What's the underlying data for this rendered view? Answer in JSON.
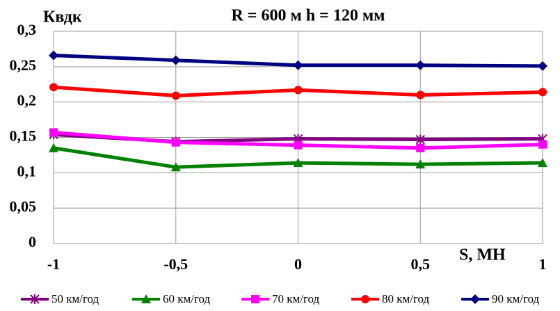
{
  "chart_data": {
    "type": "line",
    "title": "R = 600 м  h = 120 мм",
    "y_label": "Квдк",
    "x_label": "S, МН",
    "x": [
      -1,
      -0.5,
      0,
      0.5,
      1
    ],
    "xlim": [
      -1,
      1
    ],
    "xticks": [
      -1,
      {
        "value": -0.5,
        "label": "-0,5"
      },
      0,
      {
        "value": 0.5,
        "label": "0,5"
      },
      1
    ],
    "ylim": [
      0,
      0.3
    ],
    "yticks": [
      0,
      {
        "value": 0.05,
        "label": "0,05"
      },
      {
        "value": 0.1,
        "label": "0,1"
      },
      {
        "value": 0.15,
        "label": "0,15"
      },
      {
        "value": 0.2,
        "label": "0,2"
      },
      {
        "value": 0.25,
        "label": "0,25"
      },
      {
        "value": 0.3,
        "label": "0,3"
      }
    ],
    "grid": true,
    "legend": "bottom",
    "series": [
      {
        "name": "50 км/год",
        "color": "#800080",
        "marker": "star",
        "values": [
          0.154,
          0.144,
          0.148,
          0.147,
          0.148
        ]
      },
      {
        "name": "60 км/год",
        "color": "#008000",
        "marker": "triangle",
        "values": [
          0.135,
          0.108,
          0.114,
          0.112,
          0.114
        ]
      },
      {
        "name": "70 км/год",
        "color": "#ff00ff",
        "marker": "square",
        "values": [
          0.157,
          0.143,
          0.139,
          0.135,
          0.14
        ]
      },
      {
        "name": "80 км/год",
        "color": "#ff0000",
        "marker": "circle",
        "values": [
          0.221,
          0.209,
          0.217,
          0.21,
          0.214
        ]
      },
      {
        "name": "90 км/год",
        "color": "#000080",
        "marker": "diamond",
        "values": [
          0.266,
          0.259,
          0.252,
          0.252,
          0.251
        ]
      }
    ]
  }
}
